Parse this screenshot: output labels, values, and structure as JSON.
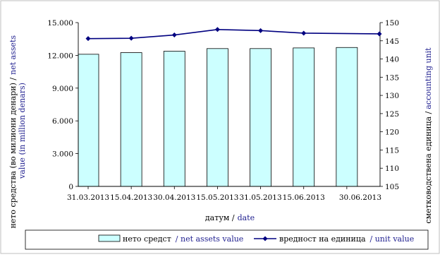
{
  "chart_data": {
    "type": "bar+line",
    "categories": [
      "31.03.2013",
      "15.04.2013",
      "30.04.2013",
      "15.05.2013",
      "31.05.2013",
      "15.06.2013",
      "30.06.2013"
    ],
    "series": [
      {
        "name": "нето средства / net assets value",
        "kind": "bar",
        "axis": "left",
        "values": [
          12100,
          12250,
          12380,
          12620,
          12620,
          12680,
          12720
        ]
      },
      {
        "name": "вредност на единица / unit value",
        "kind": "line",
        "axis": "right",
        "values": [
          145.6,
          145.7,
          146.6,
          148.1,
          147.8,
          147.1,
          146.9
        ]
      }
    ],
    "y_left": {
      "ticks": [
        "0",
        "3.000",
        "6.000",
        "9.000",
        "12.000",
        "15.000"
      ],
      "min": 0,
      "max": 15000,
      "label_mk": "нето средства (во милиони денари) /",
      "label_en_1": "net assets",
      "label_en_2": "value  (in million denars)"
    },
    "y_right": {
      "ticks": [
        "105",
        "110",
        "115",
        "120",
        "125",
        "130",
        "135",
        "140",
        "145",
        "150"
      ],
      "min": 105,
      "max": 150,
      "label_mk": "сметководствена единица /",
      "label_en": "accounting unit"
    },
    "x_axis": {
      "label_mk": "датум /",
      "label_en": "date"
    },
    "legend": {
      "position": "bottom",
      "bar_label_mk": "нето средст",
      "bar_label_en": "/ net assets value",
      "line_label_mk": "вредност на единица",
      "line_label_en": "/ unit value"
    },
    "colors": {
      "bar_fill": "#ccffff",
      "bar_stroke": "#000000",
      "line": "#000080",
      "blue_text": "#1f1f8f"
    },
    "grid": false
  }
}
